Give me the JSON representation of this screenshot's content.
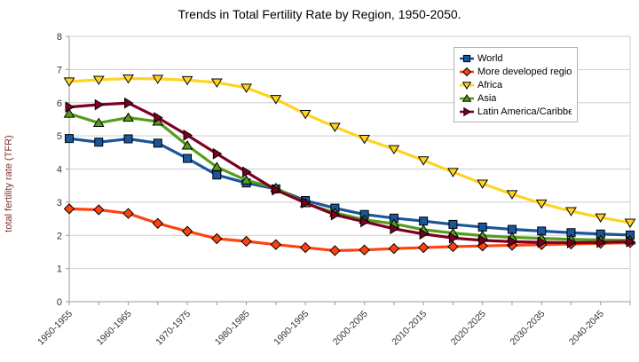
{
  "title": "Trends in Total Fertility Rate by Region, 1950-2050.",
  "colors": {
    "grid": "#cdcdcd",
    "axis": "#9a9a9a",
    "tick_text": "#333333",
    "y_axis_title": "#7c2f2f",
    "legend_border": "#b3b3b3"
  },
  "axis": {
    "yticks": [
      0,
      1,
      2,
      3,
      4,
      5,
      6,
      7,
      8
    ]
  },
  "chart_data": {
    "type": "line",
    "title": "Trends in Total Fertility Rate by Region, 1950-2050.",
    "xlabel": "",
    "ylabel": "total fertility rate (TFR)",
    "ylim": [
      0,
      8
    ],
    "ytick_interval": 1,
    "grid": "horizontal",
    "legend_position": "top-right-inside",
    "x_labeled_every": 2,
    "categories": [
      "1950-1955",
      "1955-1960",
      "1960-1965",
      "1965-1970",
      "1970-1975",
      "1975-1980",
      "1980-1985",
      "1985-1990",
      "1990-1995",
      "1995-2000",
      "2000-2005",
      "2005-2010",
      "2010-2015",
      "2015-2020",
      "2020-2025",
      "2025-2030",
      "2030-2035",
      "2035-2040",
      "2040-2045",
      "2045-2050"
    ],
    "series": [
      {
        "name": "World",
        "color": "#1a569a",
        "marker": "square",
        "values": [
          4.92,
          4.81,
          4.91,
          4.78,
          4.32,
          3.82,
          3.58,
          3.4,
          3.05,
          2.82,
          2.63,
          2.52,
          2.43,
          2.33,
          2.25,
          2.18,
          2.13,
          2.08,
          2.04,
          2.01
        ]
      },
      {
        "name": "More developed regions",
        "color": "#ff420e",
        "marker": "diamond",
        "values": [
          2.8,
          2.77,
          2.66,
          2.36,
          2.12,
          1.9,
          1.82,
          1.72,
          1.63,
          1.54,
          1.56,
          1.6,
          1.63,
          1.66,
          1.68,
          1.7,
          1.72,
          1.74,
          1.76,
          1.78
        ]
      },
      {
        "name": "Africa",
        "color": "#ffd320",
        "marker": "triangle-down",
        "values": [
          6.64,
          6.69,
          6.73,
          6.72,
          6.68,
          6.61,
          6.45,
          6.11,
          5.66,
          5.27,
          4.91,
          4.6,
          4.26,
          3.91,
          3.56,
          3.24,
          2.96,
          2.73,
          2.54,
          2.38
        ]
      },
      {
        "name": "Asia",
        "color": "#579d1c",
        "marker": "triangle-up",
        "values": [
          5.67,
          5.39,
          5.55,
          5.43,
          4.71,
          4.06,
          3.66,
          3.43,
          2.97,
          2.68,
          2.47,
          2.35,
          2.17,
          2.07,
          1.99,
          1.94,
          1.91,
          1.88,
          1.86,
          1.85
        ]
      },
      {
        "name": "Latin America/Caribbean",
        "color": "#7e0021",
        "marker": "triangle-right",
        "values": [
          5.87,
          5.94,
          5.99,
          5.55,
          5.02,
          4.46,
          3.91,
          3.37,
          2.98,
          2.62,
          2.41,
          2.2,
          2.04,
          1.92,
          1.85,
          1.81,
          1.79,
          1.78,
          1.79,
          1.81
        ]
      }
    ]
  }
}
